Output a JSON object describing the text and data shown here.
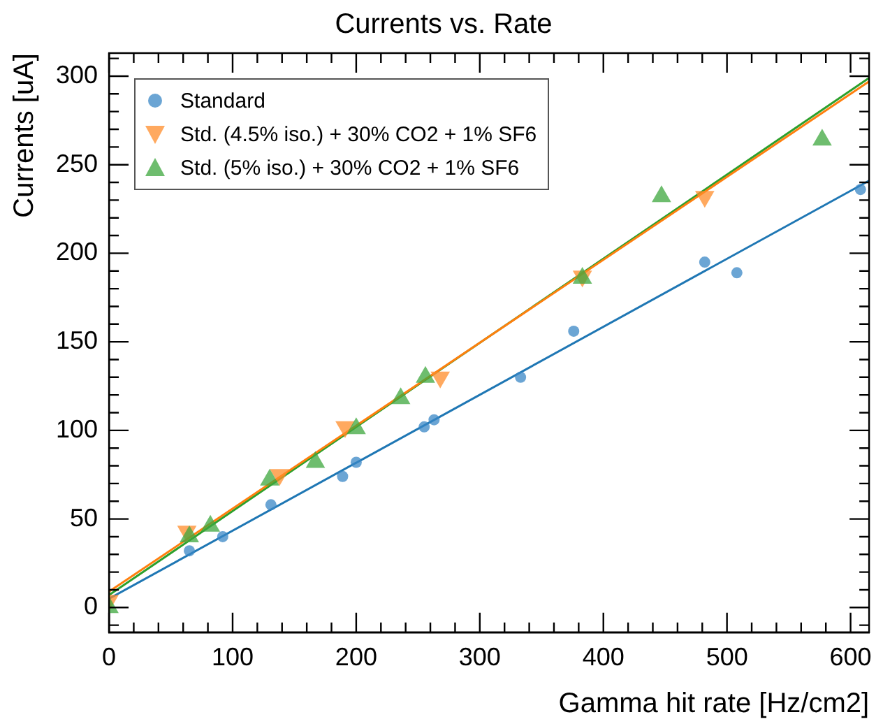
{
  "chart_data": {
    "type": "scatter",
    "title": "Currents vs. Rate",
    "xlabel": "Gamma hit rate [Hz/cm2]",
    "ylabel": "Currents [uA]",
    "xlim": [
      0,
      615
    ],
    "ylim": [
      -14,
      313
    ],
    "xticks": [
      0,
      {
        "value": 20,
        "label": null
      },
      {
        "value": 40,
        "label": null
      },
      {
        "value": 60,
        "label": null
      },
      {
        "value": 80,
        "label": null
      },
      100,
      {
        "value": 120,
        "label": null
      },
      {
        "value": 140,
        "label": null
      },
      {
        "value": 160,
        "label": null
      },
      {
        "value": 180,
        "label": null
      },
      200,
      {
        "value": 220,
        "label": null
      },
      {
        "value": 240,
        "label": null
      },
      {
        "value": 260,
        "label": null
      },
      {
        "value": 280,
        "label": null
      },
      300,
      {
        "value": 320,
        "label": null
      },
      {
        "value": 340,
        "label": null
      },
      {
        "value": 360,
        "label": null
      },
      {
        "value": 380,
        "label": null
      },
      400,
      {
        "value": 420,
        "label": null
      },
      {
        "value": 440,
        "label": null
      },
      {
        "value": 460,
        "label": null
      },
      {
        "value": 480,
        "label": null
      },
      500,
      {
        "value": 520,
        "label": null
      },
      {
        "value": 540,
        "label": null
      },
      {
        "value": 560,
        "label": null
      },
      {
        "value": 580,
        "label": null
      },
      600
    ],
    "yticks": [
      {
        "value": -10,
        "label": null
      },
      0,
      {
        "value": 10,
        "label": null
      },
      {
        "value": 20,
        "label": null
      },
      {
        "value": 30,
        "label": null
      },
      {
        "value": 40,
        "label": null
      },
      50,
      {
        "value": 60,
        "label": null
      },
      {
        "value": 70,
        "label": null
      },
      {
        "value": 80,
        "label": null
      },
      {
        "value": 90,
        "label": null
      },
      100,
      {
        "value": 110,
        "label": null
      },
      {
        "value": 120,
        "label": null
      },
      {
        "value": 130,
        "label": null
      },
      {
        "value": 140,
        "label": null
      },
      150,
      {
        "value": 160,
        "label": null
      },
      {
        "value": 170,
        "label": null
      },
      {
        "value": 180,
        "label": null
      },
      {
        "value": 190,
        "label": null
      },
      200,
      {
        "value": 210,
        "label": null
      },
      {
        "value": 220,
        "label": null
      },
      {
        "value": 230,
        "label": null
      },
      {
        "value": 240,
        "label": null
      },
      250,
      {
        "value": 260,
        "label": null
      },
      {
        "value": 270,
        "label": null
      },
      {
        "value": 280,
        "label": null
      },
      {
        "value": 290,
        "label": null
      },
      300,
      {
        "value": 310,
        "label": null
      }
    ],
    "grid": false,
    "legend": "top left",
    "series": [
      {
        "name": "Standard",
        "color": "#3a87c6",
        "marker": "circle",
        "x": [
          65,
          92,
          131,
          189,
          200,
          255,
          263,
          333,
          376,
          482,
          508,
          608
        ],
        "values": [
          32,
          40,
          58,
          74,
          82,
          102,
          106,
          130,
          156,
          195,
          189,
          236
        ]
      },
      {
        "name": "Std. (4.5% iso.) + 30% CO2 + 1% SF6",
        "color": "#ff8c2a",
        "marker": "triangle-down",
        "x": [
          0,
          63,
          138,
          191,
          268,
          383,
          482
        ],
        "values": [
          4,
          43,
          75,
          102,
          130,
          187,
          232
        ]
      },
      {
        "name": "Std. (5% iso.) + 30% CO2 + 1% SF6",
        "color": "#3ea73e",
        "marker": "triangle",
        "x": [
          0,
          65,
          82,
          130,
          167,
          200,
          236,
          256,
          383,
          447,
          577
        ],
        "values": [
          0,
          40,
          46,
          72,
          82,
          101,
          118,
          130,
          186,
          232,
          264
        ]
      },
      {
        "type": "line",
        "color": "#1f77b4",
        "marker": "none",
        "x": [
          0,
          615
        ],
        "values": [
          5,
          241
        ]
      },
      {
        "type": "line",
        "color": "#ff7f0e",
        "marker": "none",
        "x": [
          0,
          615
        ],
        "values": [
          9,
          297
        ]
      },
      {
        "type": "line",
        "color": "#2ca02c",
        "marker": "none",
        "x": [
          0,
          615
        ],
        "values": [
          7,
          299
        ]
      }
    ]
  }
}
